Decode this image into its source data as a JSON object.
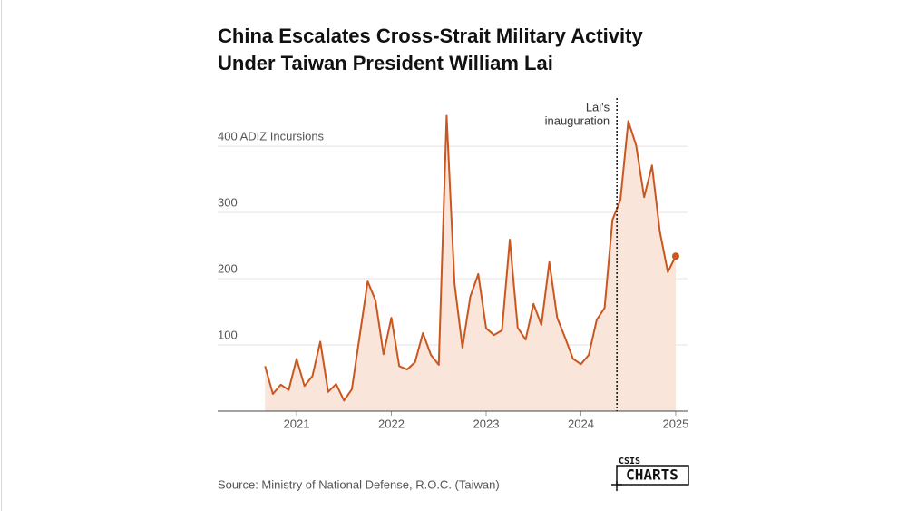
{
  "chart_data": {
    "type": "area",
    "title": [
      "China Escalates Cross-Strait Military Activity",
      "Under Taiwan President William Lai"
    ],
    "x": [
      2020.667,
      2020.75,
      2020.833,
      2020.917,
      2021,
      2021.083,
      2021.167,
      2021.25,
      2021.333,
      2021.417,
      2021.5,
      2021.583,
      2021.667,
      2021.75,
      2021.833,
      2021.917,
      2022,
      2022.083,
      2022.167,
      2022.25,
      2022.333,
      2022.417,
      2022.5,
      2022.583,
      2022.667,
      2022.75,
      2022.833,
      2022.917,
      2023,
      2023.083,
      2023.167,
      2023.25,
      2023.333,
      2023.417,
      2023.5,
      2023.583,
      2023.667,
      2023.75,
      2023.833,
      2023.917,
      2024,
      2024.083,
      2024.167,
      2024.25,
      2024.333,
      2024.417,
      2024.5,
      2024.583,
      2024.667,
      2024.75,
      2024.833,
      2024.917,
      2025
    ],
    "series": [
      {
        "color": "#c9571f",
        "fill": "#f9e5da",
        "values": [
          68,
          26,
          40,
          32,
          79,
          38,
          53,
          105,
          29,
          41,
          16,
          33,
          115,
          196,
          167,
          86,
          141,
          68,
          63,
          74,
          118,
          85,
          70,
          446,
          192,
          96,
          173,
          207,
          125,
          115,
          122,
          259,
          126,
          108,
          162,
          130,
          225,
          141,
          111,
          79,
          71,
          85,
          138,
          156,
          289,
          319,
          438,
          401,
          323,
          371,
          271,
          210,
          234
        ]
      }
    ],
    "xlim": [
      2020.167,
      2025.125
    ],
    "xticks": [
      2021,
      2022,
      2023,
      2024,
      2025
    ],
    "ylim": [
      0,
      470
    ],
    "yticks": [
      100,
      200,
      300,
      {
        "value": 400,
        "label": "400 ADIZ Incursions"
      }
    ],
    "grid": true,
    "annotation": {
      "x": 2024.38,
      "text": [
        "Lai's",
        "inauguration"
      ]
    },
    "source": "Source: Ministry of National Defense, R.O.C. (Taiwan)",
    "logo": {
      "top": "CSIS",
      "bottom": "CHARTS"
    }
  }
}
